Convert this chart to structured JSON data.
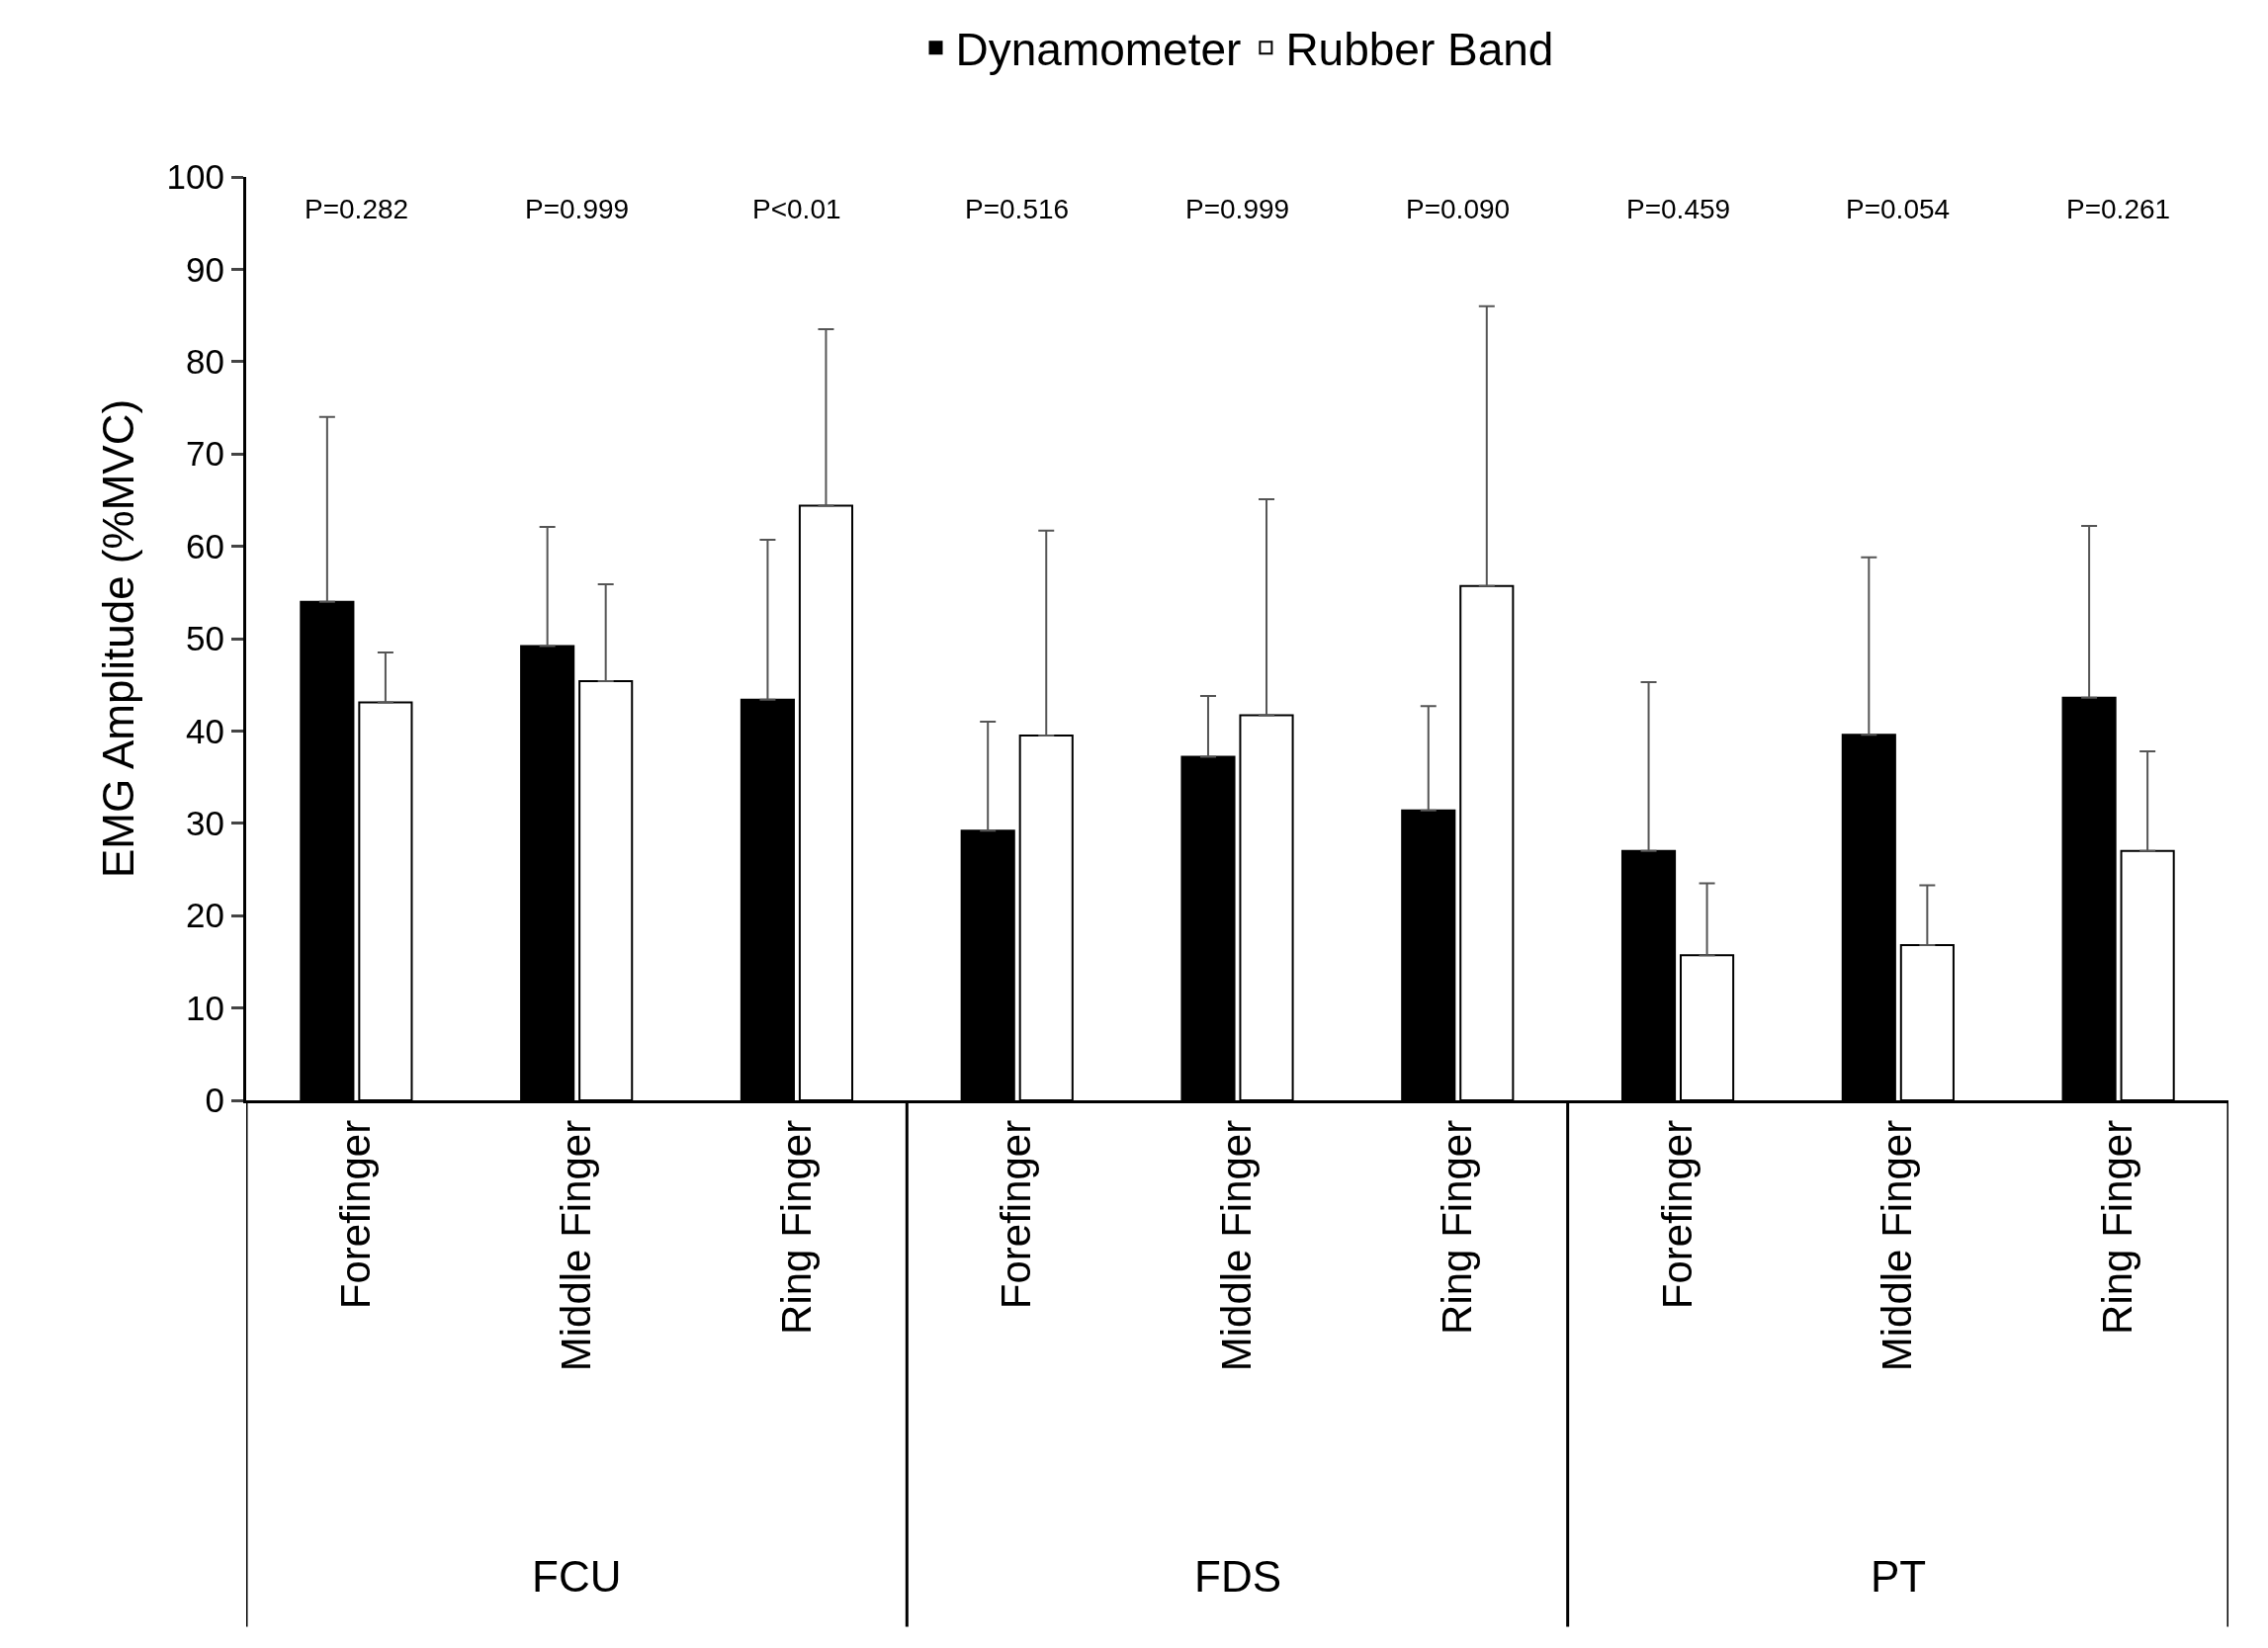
{
  "chart_data": {
    "type": "bar",
    "ylabel": "EMG Amplitude (%MVC)",
    "categories": [
      "Forefinger",
      "Middle Finger",
      "Ring Finger",
      "Forefinger",
      "Middle Finger",
      "Ring Finger",
      "Forefinger",
      "Middle Finger",
      "Ring Finger"
    ],
    "series": [
      {
        "name": "Dynamometer",
        "color": "#000000",
        "values": [
          54.0,
          49.2,
          43.4,
          29.2,
          37.2,
          31.4,
          27.0,
          39.6,
          43.6
        ],
        "errors": [
          [
            54.0,
            74.0
          ],
          [
            49.2,
            62.1
          ],
          [
            43.4,
            60.7
          ],
          [
            29.2,
            41.0
          ],
          [
            37.2,
            43.8
          ],
          [
            31.4,
            42.7
          ],
          [
            27.0,
            45.3
          ],
          [
            39.6,
            58.8
          ],
          [
            43.6,
            62.2
          ]
        ]
      },
      {
        "name": "Rubber Band",
        "color": "#ffffff",
        "values": [
          43.1,
          45.4,
          64.4,
          39.5,
          41.7,
          55.7,
          15.7,
          16.8,
          27.0
        ],
        "errors": [
          [
            43.1,
            48.5
          ],
          [
            45.4,
            55.9
          ],
          [
            64.4,
            83.5
          ],
          [
            39.5,
            61.7
          ],
          [
            41.7,
            65.1
          ],
          [
            55.7,
            86.0
          ],
          [
            15.7,
            23.5
          ],
          [
            16.8,
            23.3
          ],
          [
            27.0,
            37.8
          ]
        ]
      }
    ],
    "annotations": [
      "P=0.282",
      "P=0.999",
      "P<0.01",
      "P=0.516",
      "P=0.999",
      "P=0.090",
      "P=0.459",
      "P=0.054",
      "P=0.261",
      "FCU",
      "FDS",
      "PT"
    ],
    "ylim": [
      0,
      100
    ],
    "yticks": [
      0,
      10,
      20,
      30,
      40,
      50,
      60,
      70,
      80,
      90,
      100
    ],
    "legend": "top"
  }
}
